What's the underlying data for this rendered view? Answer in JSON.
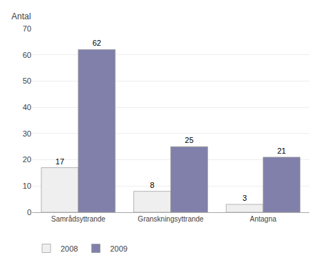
{
  "chart_data": {
    "type": "bar",
    "ylabel": "Antal",
    "categories": [
      "Samrådsyttrande",
      "Granskningsyttrande",
      "Antagna"
    ],
    "series": [
      {
        "name": "2008",
        "color": "#efefef",
        "values": [
          17,
          8,
          3
        ]
      },
      {
        "name": "2009",
        "color": "#8080aa",
        "values": [
          62,
          25,
          21
        ]
      }
    ],
    "ylim": [
      0,
      70
    ],
    "yticks": [
      0,
      10,
      20,
      30,
      40,
      50,
      60,
      70
    ],
    "grid": true,
    "legend": "bottom left",
    "data_labels": true
  }
}
